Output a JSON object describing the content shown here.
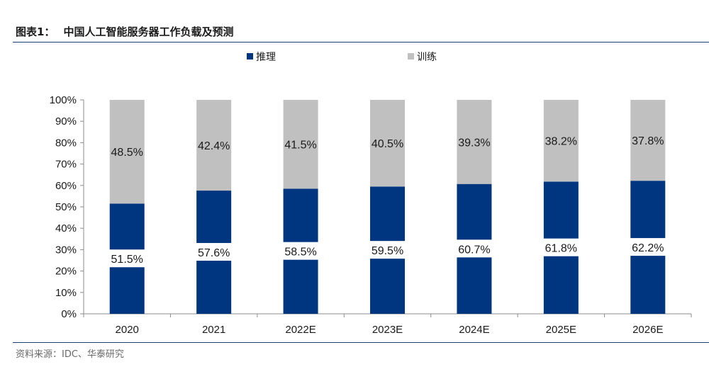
{
  "title": {
    "number": "图表1：",
    "text": "中国人工智能服务器工作负载及预测"
  },
  "source": "资料来源：IDC、华泰研究",
  "colors": {
    "inference": "#003580",
    "training": "#c0c0c0",
    "rule": "#1f3a78"
  },
  "chart_data": {
    "type": "bar",
    "stacked": true,
    "categories": [
      "2020",
      "2021",
      "2022E",
      "2023E",
      "2024E",
      "2025E",
      "2026E"
    ],
    "series": [
      {
        "name": "推理",
        "values": [
          51.5,
          57.6,
          58.5,
          59.5,
          60.7,
          61.8,
          62.2
        ],
        "labels": [
          "51.5%",
          "57.6%",
          "58.5%",
          "59.5%",
          "60.7%",
          "61.8%",
          "62.2%"
        ]
      },
      {
        "name": "训练",
        "values": [
          48.5,
          42.4,
          41.5,
          40.5,
          39.3,
          38.2,
          37.8
        ],
        "labels": [
          "48.5%",
          "42.4%",
          "41.5%",
          "40.5%",
          "39.3%",
          "38.2%",
          "37.8%"
        ]
      }
    ],
    "yticks": [
      "0%",
      "10%",
      "20%",
      "30%",
      "40%",
      "50%",
      "60%",
      "70%",
      "80%",
      "90%",
      "100%"
    ],
    "ylim": [
      0,
      100
    ],
    "legend": "top-center",
    "grid": false
  }
}
